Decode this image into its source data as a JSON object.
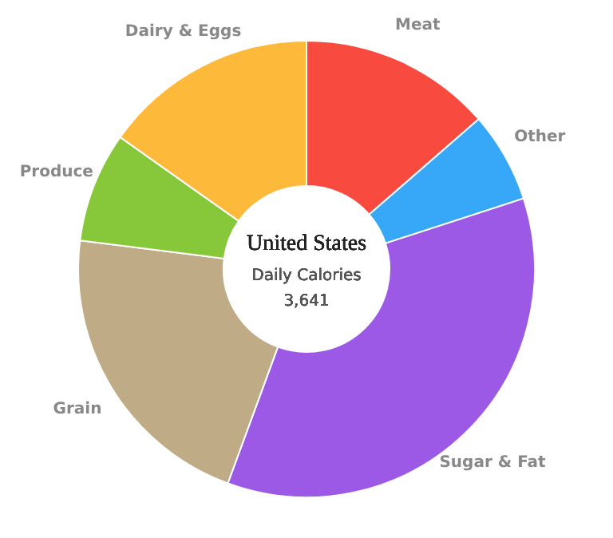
{
  "chart_data": {
    "type": "donut",
    "title": "United States",
    "subtitle": "Daily Calories",
    "annotations": [
      "3,641"
    ],
    "categories": [
      "Meat",
      "Other",
      "Sugar & Fat",
      "Grain",
      "Produce",
      "Dairy & Eggs"
    ],
    "values": [
      13.6,
      6.4,
      35.6,
      21.4,
      7.8,
      15.2
    ],
    "colors": [
      "#f94a40",
      "#36a8f7",
      "#9b59e6",
      "#bfab86",
      "#86c83a",
      "#fdb93a"
    ]
  }
}
